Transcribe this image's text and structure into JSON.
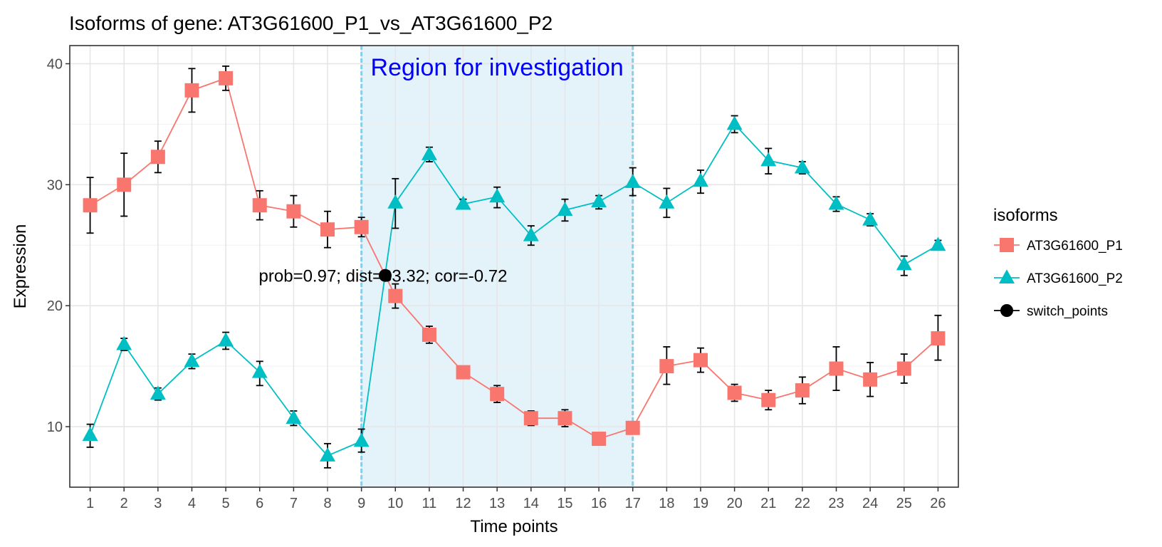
{
  "chart_data": {
    "type": "line",
    "title": "Isoforms of gene: AT3G61600_P1_vs_AT3G61600_P2",
    "xlabel": "Time points",
    "ylabel": "Expression",
    "x": [
      1,
      2,
      3,
      4,
      5,
      6,
      7,
      8,
      9,
      10,
      11,
      12,
      13,
      14,
      15,
      16,
      17,
      18,
      19,
      20,
      21,
      22,
      23,
      24,
      25,
      26
    ],
    "xlim": [
      0.4,
      26.6
    ],
    "ylim": [
      5,
      41.5
    ],
    "yticks": [
      10,
      20,
      30,
      40
    ],
    "grid": true,
    "series": [
      {
        "name": "AT3G61600_P1",
        "color": "#F8766D",
        "marker": "square",
        "values": [
          28.3,
          30.0,
          32.3,
          37.8,
          38.8,
          28.3,
          27.8,
          26.3,
          26.5,
          20.8,
          17.6,
          14.5,
          12.7,
          10.7,
          10.7,
          9.0,
          9.9,
          15.0,
          15.5,
          12.8,
          12.2,
          13.0,
          14.8,
          13.9,
          14.8,
          17.3
        ],
        "err_low": [
          26.0,
          27.4,
          31.0,
          36.0,
          37.8,
          27.1,
          26.5,
          24.8,
          25.7,
          19.8,
          16.9,
          14.0,
          12.0,
          10.1,
          10.0,
          8.5,
          9.5,
          13.5,
          14.5,
          12.1,
          11.4,
          11.9,
          13.0,
          12.5,
          13.6,
          15.5
        ],
        "err_high": [
          30.6,
          32.6,
          33.6,
          39.6,
          39.8,
          29.5,
          29.1,
          27.8,
          27.3,
          21.8,
          18.3,
          15.0,
          13.4,
          11.3,
          11.4,
          9.5,
          10.3,
          16.6,
          16.5,
          13.5,
          13.0,
          14.1,
          16.6,
          15.3,
          16.0,
          19.2
        ]
      },
      {
        "name": "AT3G61600_P2",
        "color": "#00BFC4",
        "marker": "triangle",
        "values": [
          9.3,
          16.8,
          12.7,
          15.4,
          17.1,
          14.5,
          10.7,
          7.6,
          8.8,
          28.5,
          32.5,
          28.4,
          29.0,
          25.8,
          27.9,
          28.6,
          30.2,
          28.5,
          30.3,
          35.0,
          32.0,
          31.4,
          28.4,
          27.1,
          23.4,
          25.0
        ],
        "err_low": [
          8.3,
          16.3,
          12.2,
          14.8,
          16.4,
          13.4,
          10.1,
          6.6,
          7.9,
          26.4,
          31.9,
          28.0,
          28.1,
          25.0,
          27.0,
          28.0,
          29.1,
          27.3,
          29.3,
          34.3,
          30.9,
          30.9,
          27.8,
          26.6,
          22.5,
          24.6
        ],
        "err_high": [
          10.2,
          17.3,
          13.2,
          16.0,
          17.8,
          15.4,
          11.3,
          8.6,
          9.8,
          30.5,
          33.1,
          28.8,
          29.8,
          26.6,
          28.8,
          29.1,
          31.4,
          29.7,
          31.2,
          35.7,
          33.0,
          31.9,
          29.0,
          27.6,
          24.1,
          25.4
        ]
      }
    ],
    "switch_points": {
      "name": "switch_points",
      "color": "#000000",
      "points": [
        {
          "x": 9.7,
          "y": 22.5
        }
      ],
      "annotation": "prob=0.97; dist=33.32; cor=-0.72"
    },
    "region": {
      "label": "Region for investigation",
      "x_start": 9,
      "x_end": 17,
      "fill": "#E4F2FA",
      "line_color": "#87CEEB",
      "label_color": "#0000FF"
    },
    "legend": {
      "title": "isoforms",
      "placement": "right"
    }
  }
}
